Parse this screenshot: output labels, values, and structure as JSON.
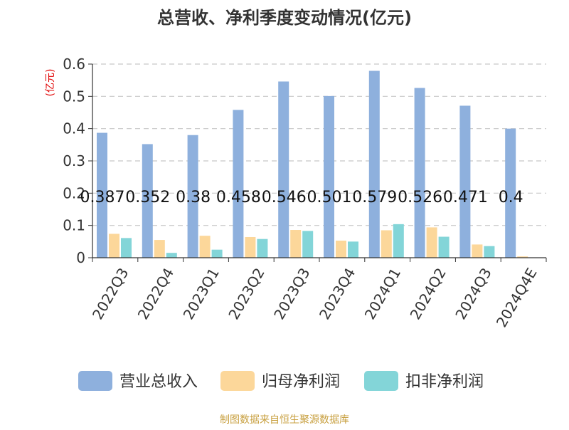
{
  "chart_data": {
    "type": "bar",
    "title": "总营收、净利季度变动情况(亿元)",
    "ylabel": "(亿元)",
    "xlabel": "",
    "ylim": [
      0,
      0.6
    ],
    "yticks": [
      "0",
      "0.1",
      "0.2",
      "0.3",
      "0.4",
      "0.5",
      "0.6"
    ],
    "grid": true,
    "legend_position": "bottom",
    "categories": [
      "2022Q3",
      "2022Q4",
      "2023Q1",
      "2023Q2",
      "2023Q3",
      "2023Q4",
      "2024Q1",
      "2024Q2",
      "2024Q3",
      "2024Q4E"
    ],
    "series": [
      {
        "name": "营业总收入",
        "color": "#8eb0dd",
        "values": [
          0.387,
          0.352,
          0.38,
          0.458,
          0.546,
          0.501,
          0.579,
          0.526,
          0.471,
          0.4
        ]
      },
      {
        "name": "归母净利润",
        "color": "#fcd79a",
        "values": [
          0.074,
          0.055,
          0.068,
          0.064,
          0.086,
          0.053,
          0.085,
          0.094,
          0.041,
          0.004
        ]
      },
      {
        "name": "扣非净利润",
        "color": "#83d5d8",
        "values": [
          0.061,
          0.015,
          0.025,
          0.058,
          0.083,
          0.05,
          0.104,
          0.065,
          0.036,
          0
        ]
      }
    ],
    "data_labels": [
      "0.387",
      "0.352",
      "0.38",
      "0.458",
      "0.546",
      "0.501",
      "0.579",
      "0.526",
      "0.471",
      "0.4"
    ]
  },
  "footer": {
    "source": "制图数据来自恒生聚源数据库"
  }
}
